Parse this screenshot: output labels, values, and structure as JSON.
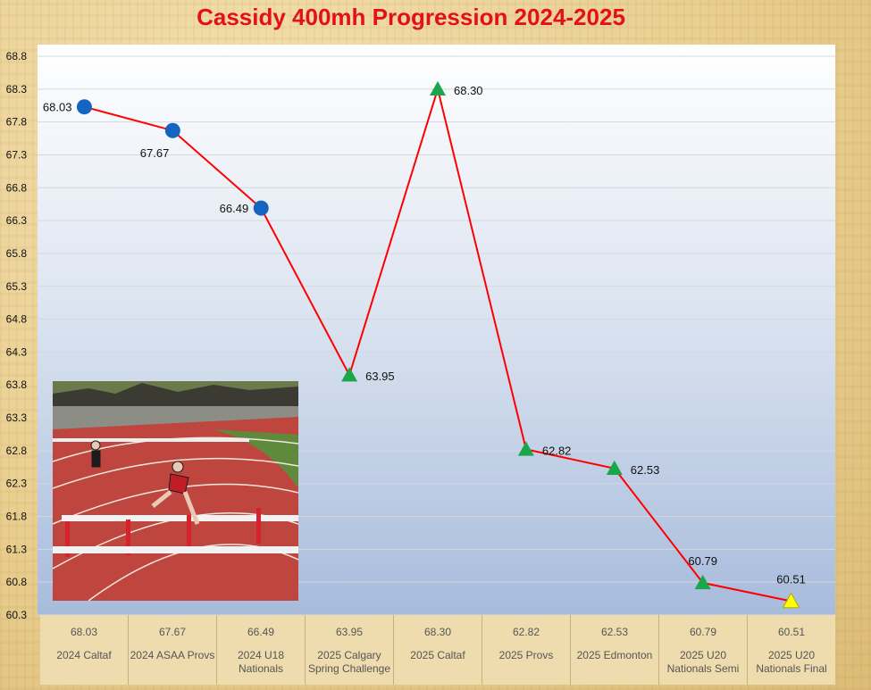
{
  "chart_data": {
    "type": "line",
    "title": "Cassidy 400mh Progression 2024-2025",
    "xlabel": "",
    "ylabel": "",
    "ylim": [
      60.3,
      68.8
    ],
    "yticks": [
      60.3,
      60.8,
      61.3,
      61.8,
      62.3,
      62.8,
      63.3,
      63.8,
      64.3,
      64.8,
      65.3,
      65.8,
      66.3,
      66.8,
      67.3,
      67.8,
      68.3,
      68.8
    ],
    "ytick_labels": [
      "60.3",
      "60.8",
      "61.3",
      "61.8",
      "62.3",
      "62.8",
      "63.3",
      "63.8",
      "64.3",
      "64.8",
      "65.3",
      "65.8",
      "66.3",
      "66.8",
      "67.3",
      "67.8",
      "68.3",
      "68.8"
    ],
    "grid": true,
    "legend": "none",
    "line_color": "#ff0000",
    "categories": [
      "2024 Caltaf",
      "2024 ASAA Provs",
      "2024 U18 Nationals",
      "2025 Calgary Spring Challenge",
      "2025 Caltaf",
      "2025 Provs",
      "2025 Edmonton",
      "2025 U20 Nationals Semi",
      "2025 U20 Nationals Final"
    ],
    "category_lines": [
      [
        "2024 Caltaf"
      ],
      [
        "2024 ASAA Provs"
      ],
      [
        "2024 U18",
        "Nationals"
      ],
      [
        "2025 Calgary",
        "Spring Challenge"
      ],
      [
        "2025 Caltaf"
      ],
      [
        "2025 Provs"
      ],
      [
        "2025 Edmonton"
      ],
      [
        "2025 U20",
        "Nationals Semi"
      ],
      [
        "2025 U20",
        "Nationals Final"
      ]
    ],
    "values": [
      68.03,
      67.67,
      66.49,
      63.95,
      68.3,
      62.82,
      62.53,
      60.79,
      60.51
    ],
    "value_labels": [
      "68.03",
      "67.67",
      "66.49",
      "63.95",
      "68.30",
      "62.82",
      "62.53",
      "60.79",
      "60.51"
    ],
    "markers": [
      "circle",
      "circle",
      "circle",
      "triangle",
      "triangle",
      "triangle",
      "triangle",
      "triangle",
      "triangle"
    ],
    "marker_colors": [
      "#1565c0",
      "#1565c0",
      "#1565c0",
      "#1aa64a",
      "#1aa64a",
      "#1aa64a",
      "#1aa64a",
      "#1aa64a",
      "#ffff00"
    ],
    "label_positions": [
      "left",
      "below-left",
      "left",
      "right",
      "right",
      "right",
      "right",
      "above",
      "above"
    ]
  },
  "photo": {
    "subject": "hurdler-race-photo"
  }
}
